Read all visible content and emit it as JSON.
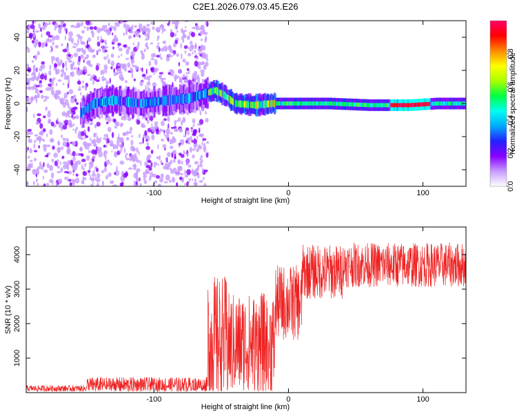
{
  "title": "C2E1.2026.079.03.45.E26",
  "chart_data": [
    {
      "type": "heatmap",
      "name": "spectrogram",
      "xlabel": "Height of straight line (km)",
      "ylabel": "Frequency (Hz)",
      "xlim": [
        -195,
        132
      ],
      "ylim": [
        -50,
        50
      ],
      "xticks": [
        -100,
        0,
        100
      ],
      "yticks": [
        -40,
        -20,
        0,
        20,
        40
      ],
      "ridge": [
        {
          "x": -155,
          "y": -6
        },
        {
          "x": -145,
          "y": 0
        },
        {
          "x": -130,
          "y": 2
        },
        {
          "x": -110,
          "y": 0
        },
        {
          "x": -90,
          "y": 2
        },
        {
          "x": -75,
          "y": 3
        },
        {
          "x": -62,
          "y": 6
        },
        {
          "x": -55,
          "y": 8
        },
        {
          "x": -48,
          "y": 5
        },
        {
          "x": -40,
          "y": 0
        },
        {
          "x": -25,
          "y": -1
        },
        {
          "x": -12,
          "y": 0
        },
        {
          "x": 0,
          "y": 0
        },
        {
          "x": 30,
          "y": 0
        },
        {
          "x": 60,
          "y": -1
        },
        {
          "x": 90,
          "y": -1
        },
        {
          "x": 110,
          "y": 0
        },
        {
          "x": 132,
          "y": 0
        }
      ],
      "noise_region": [
        -195,
        -60
      ]
    },
    {
      "type": "colorbar",
      "name": "amplitude-colorbar",
      "label": "Normalized spectral amplitude",
      "range": [
        0.0,
        1.0
      ],
      "ticks": [
        "0.0",
        "0.2",
        "0.4",
        "0.6",
        "0.8"
      ],
      "tick_values": [
        0.0,
        0.2,
        0.4,
        0.6,
        0.8
      ],
      "colors": [
        "#ffffff",
        "#c79bff",
        "#8800ff",
        "#2222ff",
        "#00aaff",
        "#00ffee",
        "#00ff44",
        "#aaff00",
        "#ffff00",
        "#ff8800",
        "#ff0000",
        "#ff0066"
      ]
    },
    {
      "type": "line",
      "name": "snr-trace",
      "xlabel": "Height of straight line (km)",
      "ylabel": "SNR (10 * v/v)",
      "xlim": [
        -195,
        132
      ],
      "ylim": [
        0,
        4800
      ],
      "xticks": [
        -100,
        0,
        100
      ],
      "yticks": [
        1000,
        2000,
        3000,
        4000
      ],
      "color": "#ee2222",
      "segments": [
        {
          "x0": -195,
          "x1": -150,
          "mean": 120,
          "amp": 90
        },
        {
          "x0": -150,
          "x1": -60,
          "mean": 220,
          "amp": 230
        },
        {
          "x0": -60,
          "x1": -45,
          "mean": 1500,
          "amp": 1900
        },
        {
          "x0": -45,
          "x1": -10,
          "mean": 1400,
          "amp": 1500
        },
        {
          "x0": -10,
          "x1": 10,
          "mean": 2600,
          "amp": 1100
        },
        {
          "x0": 10,
          "x1": 40,
          "mean": 3500,
          "amp": 800
        },
        {
          "x0": 40,
          "x1": 132,
          "mean": 3700,
          "amp": 650
        }
      ]
    }
  ]
}
